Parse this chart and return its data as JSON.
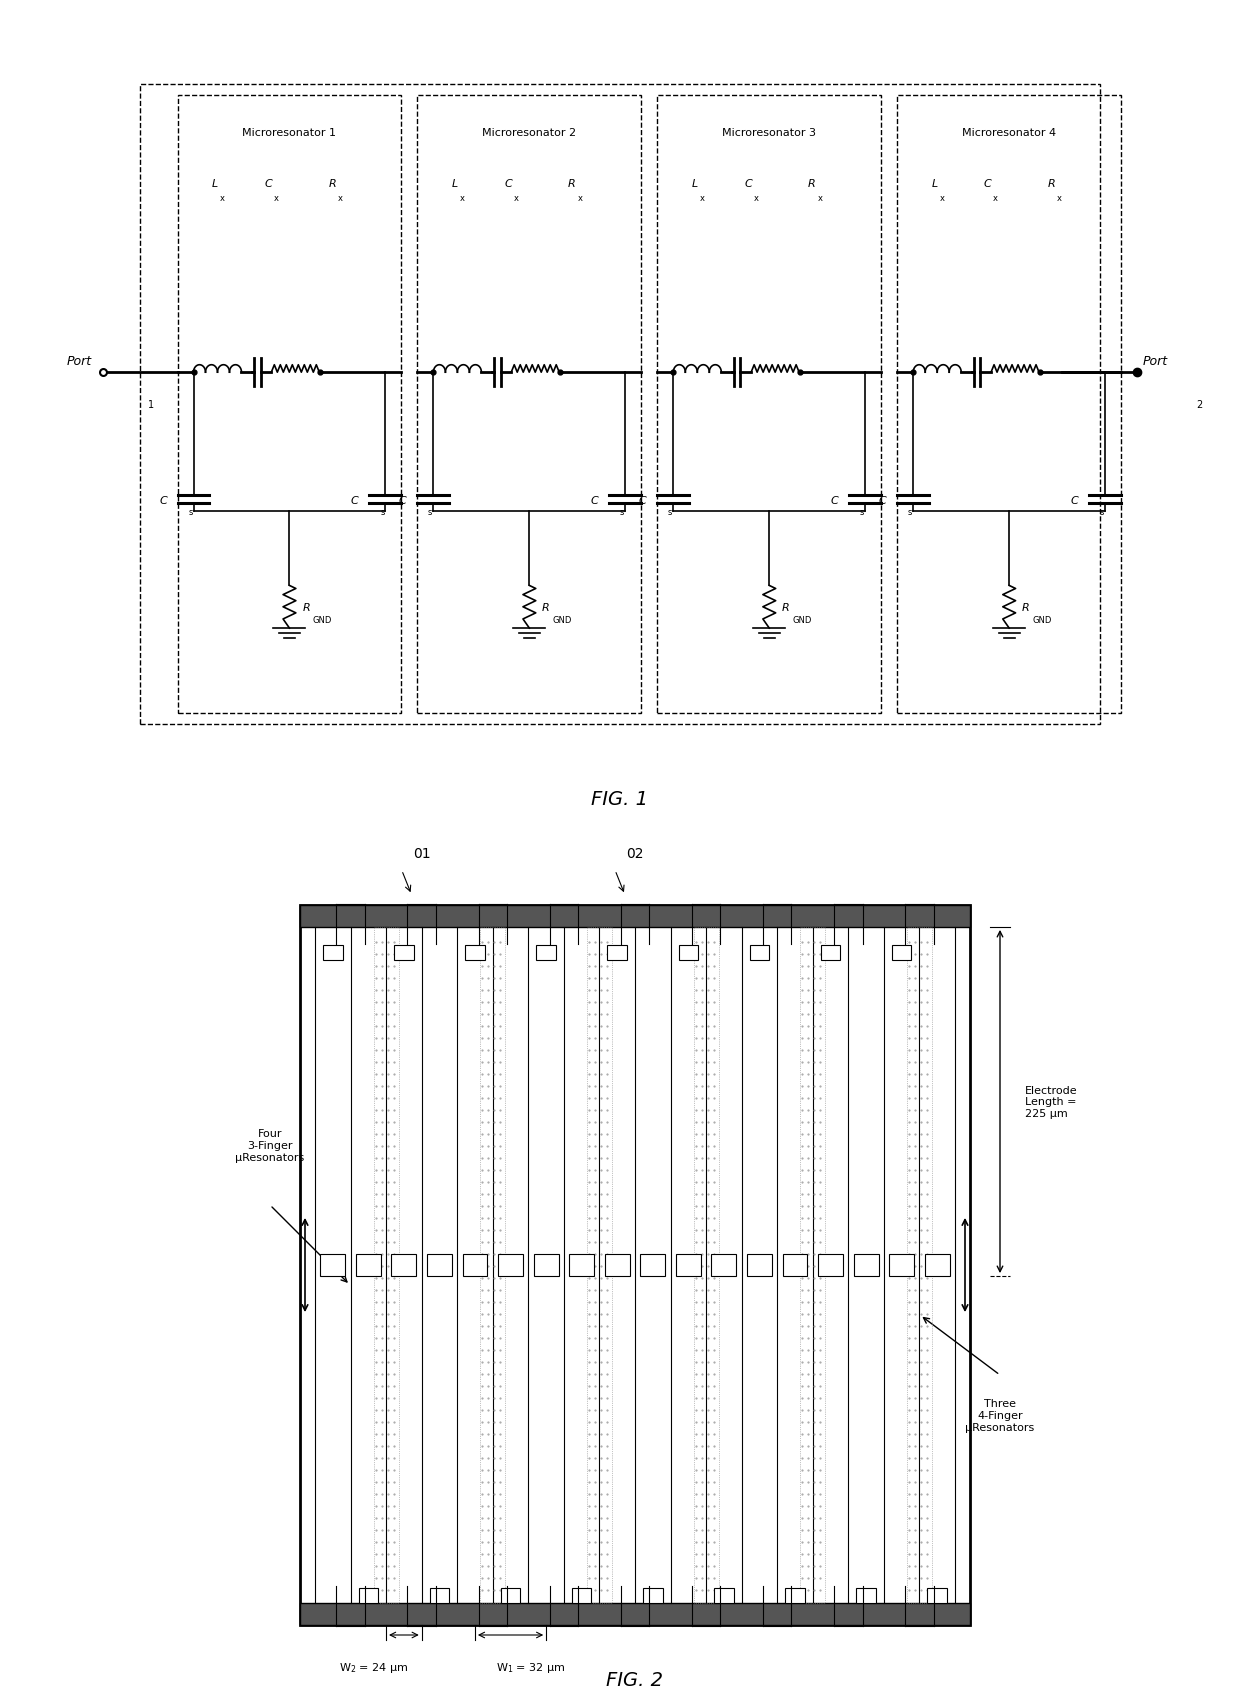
{
  "fig1_title": "FIG. 1",
  "fig2_title": "FIG. 2",
  "background_color": "#ffffff",
  "line_color": "#000000",
  "microresonator_labels": [
    "Microresonator 1",
    "Microresonator 2",
    "Microresonator 3",
    "Microresonator 4"
  ],
  "lx_label": "L",
  "lx_sub": "x",
  "cx_label": "C",
  "cx_sub": "x",
  "rx_label": "R",
  "rx_sub": "x",
  "cs_label": "C",
  "cs_sub": "s",
  "rgnd_label": "R",
  "rgnd_sub": "GND",
  "port1_label": "Port",
  "port1_sub": "1",
  "port2_label": "Port",
  "port2_sub": "2",
  "annotation_left": "Four\n3-Finger\nμResonators",
  "annotation_right_label": "Electrode\nLength =\n225 μm",
  "annotation_bottom_left": "W",
  "annotation_bottom_left_sub": "2",
  "annotation_bottom_left_val": " = 24 μm",
  "annotation_bottom_right": "W",
  "annotation_bottom_right_sub": "1",
  "annotation_bottom_right_val": " = 32 μm",
  "annotation_lower_right": "Three\n4-Finger\nμResonators",
  "label_01": "01",
  "label_02": "02"
}
